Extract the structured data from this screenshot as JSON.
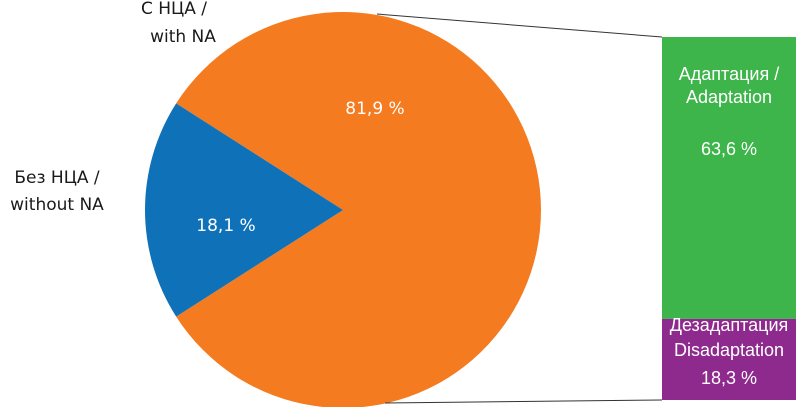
{
  "chart_data": [
    {
      "type": "pie",
      "slices": [
        {
          "key": "with_na",
          "label_line1": "С НЦА /",
          "label_line2": "with NA",
          "value": 81.9,
          "value_label": "81,9 %",
          "color": "#f47b20"
        },
        {
          "key": "without_na",
          "label_line1": "Без НЦА /",
          "label_line2": "without NA",
          "value": 18.1,
          "value_label": "18,1 %",
          "color": "#0f72b9"
        }
      ]
    },
    {
      "type": "bar",
      "stacked": true,
      "segments": [
        {
          "key": "adaptation",
          "label_line1": "Адаптация /",
          "label_line2": "Adaptation",
          "value": 63.6,
          "value_label": "63,6 %",
          "color": "#3db54a"
        },
        {
          "key": "disadaptation",
          "label_line1": "Дезадаптация",
          "label_line2": "Disadaptation",
          "value": 18.3,
          "value_label": "18,3 %",
          "color": "#8e2a8e"
        }
      ]
    }
  ],
  "colors": {
    "connector": "#333333",
    "label_dark": "#1a1a1a",
    "label_light": "#ffffff"
  }
}
